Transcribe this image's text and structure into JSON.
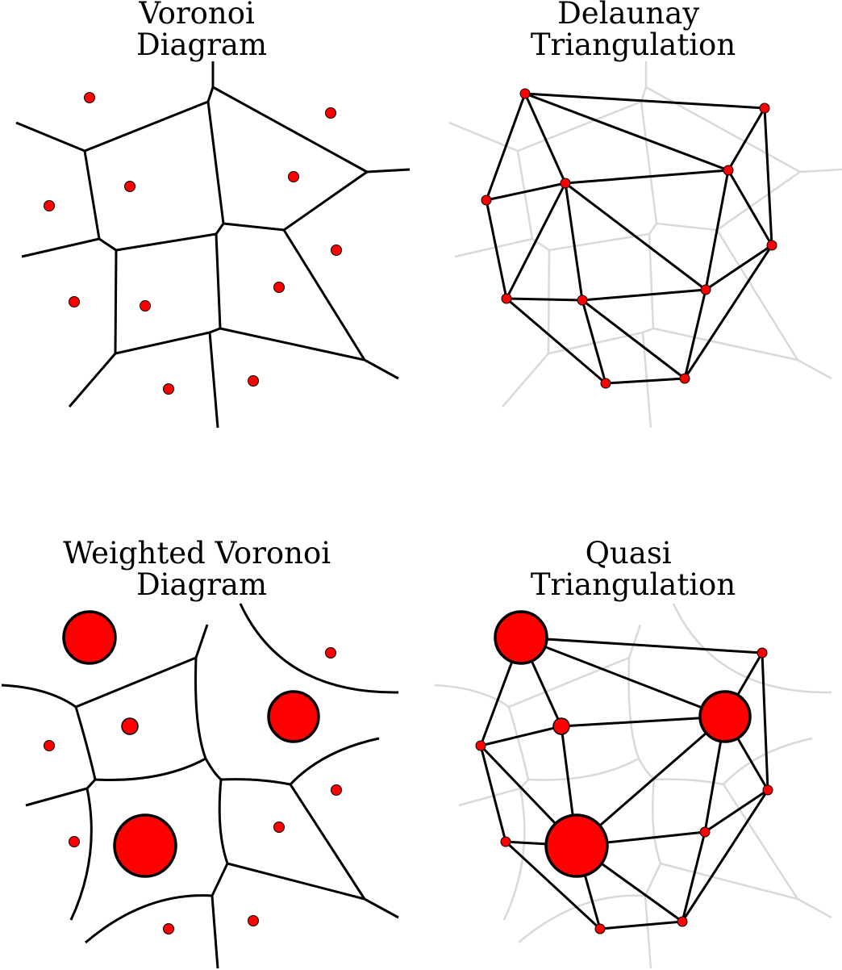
{
  "panels": [
    {
      "id": "voronoi",
      "title_lines": [
        "Voronoi",
        "Diagram"
      ]
    },
    {
      "id": "delaunay",
      "title_lines": [
        "Delaunay",
        "Triangulation"
      ]
    },
    {
      "id": "weighted-voronoi",
      "title_lines": [
        "Weighted Voronoi",
        "Diagram"
      ]
    },
    {
      "id": "quasi-triangulation",
      "title_lines": [
        "Quasi",
        "Triangulation"
      ]
    }
  ],
  "colors": {
    "site_fill": "#ff0000",
    "site_stroke": "#000000",
    "edge": "#000000",
    "background_edge": "#d9d9d9",
    "background": "#ffffff"
  }
}
